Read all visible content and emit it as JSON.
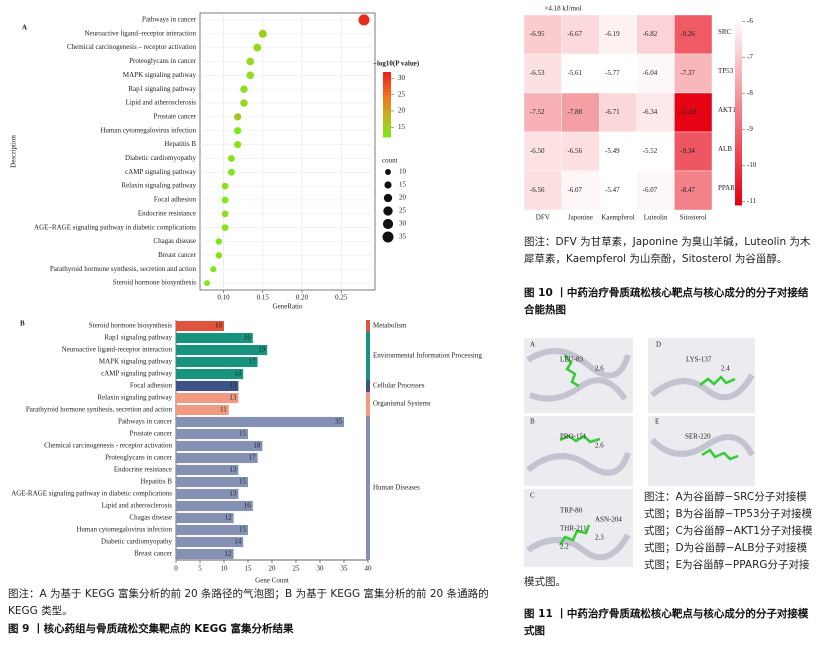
{
  "chart_data": [
    {
      "type": "bubble",
      "panel_label": "A",
      "y_label": "Description",
      "x_label": "GeneRatio",
      "categories": [
        "Pathways in cancer",
        "Neuroactive ligand–receptor interaction",
        "Chemical carcinogenesis – receptor activation",
        "Proteoglycans in cancer",
        "MAPK signaling pathway",
        "Rap1 signaling pathway",
        "Lipid and atherosclerosis",
        "Prostate cancer",
        "Human cytomegalovirus infection",
        "Hepatitis B",
        "Diabetic cardiomyopathy",
        "cAMP signaling pathway",
        "Relaxin signaling pathway",
        "Focal adhesion",
        "Endocrine resistance",
        "AGE–RAGE signaling pathway in diabetic complications",
        "Chagas disease",
        "Breast cancer",
        "Parathyroid hormone synthesis, secretion and action",
        "Steroid hormone biosynthesis"
      ],
      "values": [
        0.279,
        0.15,
        0.143,
        0.134,
        0.134,
        0.126,
        0.126,
        0.118,
        0.118,
        0.118,
        0.11,
        0.11,
        0.102,
        0.102,
        0.102,
        0.102,
        0.094,
        0.094,
        0.087,
        0.079
      ],
      "sizes": [
        35,
        19,
        18,
        17,
        17,
        16,
        16,
        15,
        15,
        15,
        14,
        14,
        13,
        13,
        13,
        13,
        12,
        12,
        11,
        10
      ],
      "color_values": [
        31,
        15,
        14,
        14,
        13,
        13,
        14,
        16,
        12,
        13,
        13,
        12,
        13,
        12,
        13,
        12,
        12,
        13,
        12,
        12
      ],
      "xlim": [
        0.07,
        0.293
      ],
      "xticks": [
        {
          "value": 0.1,
          "label": "0.10"
        },
        0.15,
        {
          "value": 0.2,
          "label": "0.20"
        },
        0.25
      ],
      "grid": true,
      "colorbar_title": "−log10(P value)",
      "clim": [
        12,
        32
      ],
      "cticks": [
        15,
        20,
        25,
        30
      ],
      "colorscale": [
        "#7ee81a",
        "#c8b020",
        "#f26a1e",
        "#e8201f"
      ],
      "size_title": "count",
      "size_ticks": [
        10,
        15,
        20,
        25,
        30,
        35
      ]
    },
    {
      "type": "bar",
      "horizontal": true,
      "panel_label": "B",
      "x_label": "Gene Count",
      "categories": [
        "Steroid hormone biosynthesis",
        "Rap1 signaling pathway",
        "Neuroactive ligand-receptor interaction",
        "MAPK signaling pathway",
        "cAMP signaling pathway",
        "Focal adhesion",
        "Relaxin signaling pathway",
        "Parathyroid hormone synthesis, secretion and action",
        "Pathways in cancer",
        "Prostate cancer",
        "Chemical carcinogenesis - receptor activation",
        "Proteoglycans in cancer",
        "Endocrine resistance",
        "Hepatitis B",
        "AGE-RAGE signaling pathway in diabetic complications",
        "Lipid and atherosclerosis",
        "Chagas disease",
        "Human cytomegalovirus infection",
        "Diabetic cardiomyopathy",
        "Breast cancer"
      ],
      "values": [
        10,
        16,
        19,
        17,
        14,
        13,
        13,
        11,
        35,
        15,
        18,
        17,
        13,
        15,
        13,
        16,
        12,
        15,
        14,
        12
      ],
      "class_index": [
        0,
        1,
        1,
        1,
        1,
        2,
        3,
        3,
        4,
        4,
        4,
        4,
        4,
        4,
        4,
        4,
        4,
        4,
        4,
        4
      ],
      "classes": [
        {
          "name": "Metabolism",
          "color": "#e0533c"
        },
        {
          "name": "Environmental Information Processing",
          "color": "#17937e"
        },
        {
          "name": "Cellular Processes",
          "color": "#3b5387"
        },
        {
          "name": "Organismal Systems",
          "color": "#f09a82"
        },
        {
          "name": "Human Diseases",
          "color": "#8491b4"
        }
      ],
      "xlim": [
        0,
        40
      ],
      "xticks": [
        0,
        5,
        10,
        15,
        20,
        25,
        30,
        35,
        40
      ]
    },
    {
      "type": "heatmap",
      "title": "×4.18 kJ/mol",
      "x": [
        "DFV",
        "Japonine",
        "Kaempferol",
        "Luteolin",
        "Sitosterol"
      ],
      "y": [
        "SRC",
        "TP53",
        "AKT1",
        "ALB",
        "PPARG"
      ],
      "values": [
        [
          -6.95,
          -6.67,
          -6.19,
          -6.82,
          -9.26
        ],
        [
          -6.53,
          -5.61,
          -5.77,
          -6.04,
          -7.37
        ],
        [
          -7.52,
          -7.88,
          -6.71,
          -6.34,
          -11.03
        ],
        [
          -6.5,
          -6.56,
          -5.49,
          -5.52,
          -9.34
        ],
        [
          -6.56,
          -6.07,
          -5.47,
          -6.07,
          -8.47
        ]
      ],
      "value_labels": [
        [
          "-6.95",
          "-6.67",
          "-6.19",
          "-6.82",
          "-9.26"
        ],
        [
          "-6.53",
          "-5.61",
          "-5.77",
          "-6.04",
          "-7.37"
        ],
        [
          "-7.52",
          "-7.88",
          "-6.71",
          "-6.34",
          "-11.03"
        ],
        [
          "-6.50",
          "-6.56",
          "-5.49",
          "-5.52",
          "-9.34"
        ],
        [
          "-6.56",
          "-6.07",
          "-5.47",
          "-6.07",
          "-8.47"
        ]
      ],
      "clim": [
        -5.9,
        -11.1
      ],
      "cticks": [
        -6,
        -7,
        -8,
        -9,
        -10,
        -11
      ],
      "colorscale": [
        "#ffffff",
        "#e60010"
      ]
    }
  ],
  "figure9": {
    "caption": "图注：A 为基于 KEGG 富集分析的前 20 条路径的气泡图；B 为基于 KEGG 富集分析的前 20 条通路的 KEGG 类型。",
    "title": "图 9 丨核心药组与骨质疏松交集靶点的 KEGG 富集分析结果"
  },
  "figure10": {
    "caption": "图注：DFV 为甘草素，Japonine 为臭山羊碱，Luteolin 为木犀草素，Kaempferol 为山奈酚，Sitosterol 为谷甾醇。",
    "title": "图 10 丨中药治疗骨质疏松核心靶点与核心成分的分子对接结合能热图"
  },
  "figure11": {
    "panels": [
      {
        "label": "A",
        "residues": [
          "LEU-83",
          "2.6"
        ]
      },
      {
        "label": "D",
        "residues": [
          "LYS-137",
          "2.4"
        ]
      },
      {
        "label": "B",
        "residues": [
          "PRO-151",
          "2.6"
        ]
      },
      {
        "label": "E",
        "residues": [
          "SER-220"
        ]
      },
      {
        "label": "C",
        "residues": [
          "TRP-80",
          "ASN-204",
          "THR-211",
          "2.3",
          "2.2"
        ]
      }
    ],
    "caption": "图注：A为谷甾醇−SRC分子对接模式图；B为谷甾醇−TP53分子对接模式图；C为谷甾醇−AKT1分子对接模式图；D为谷甾醇−ALB分子对接模式图；E为谷甾醇−PPARG分子对接模式图。",
    "title": "图 11 丨中药治疗骨质疏松核心靶点与核心成分的分子对接模式图"
  }
}
